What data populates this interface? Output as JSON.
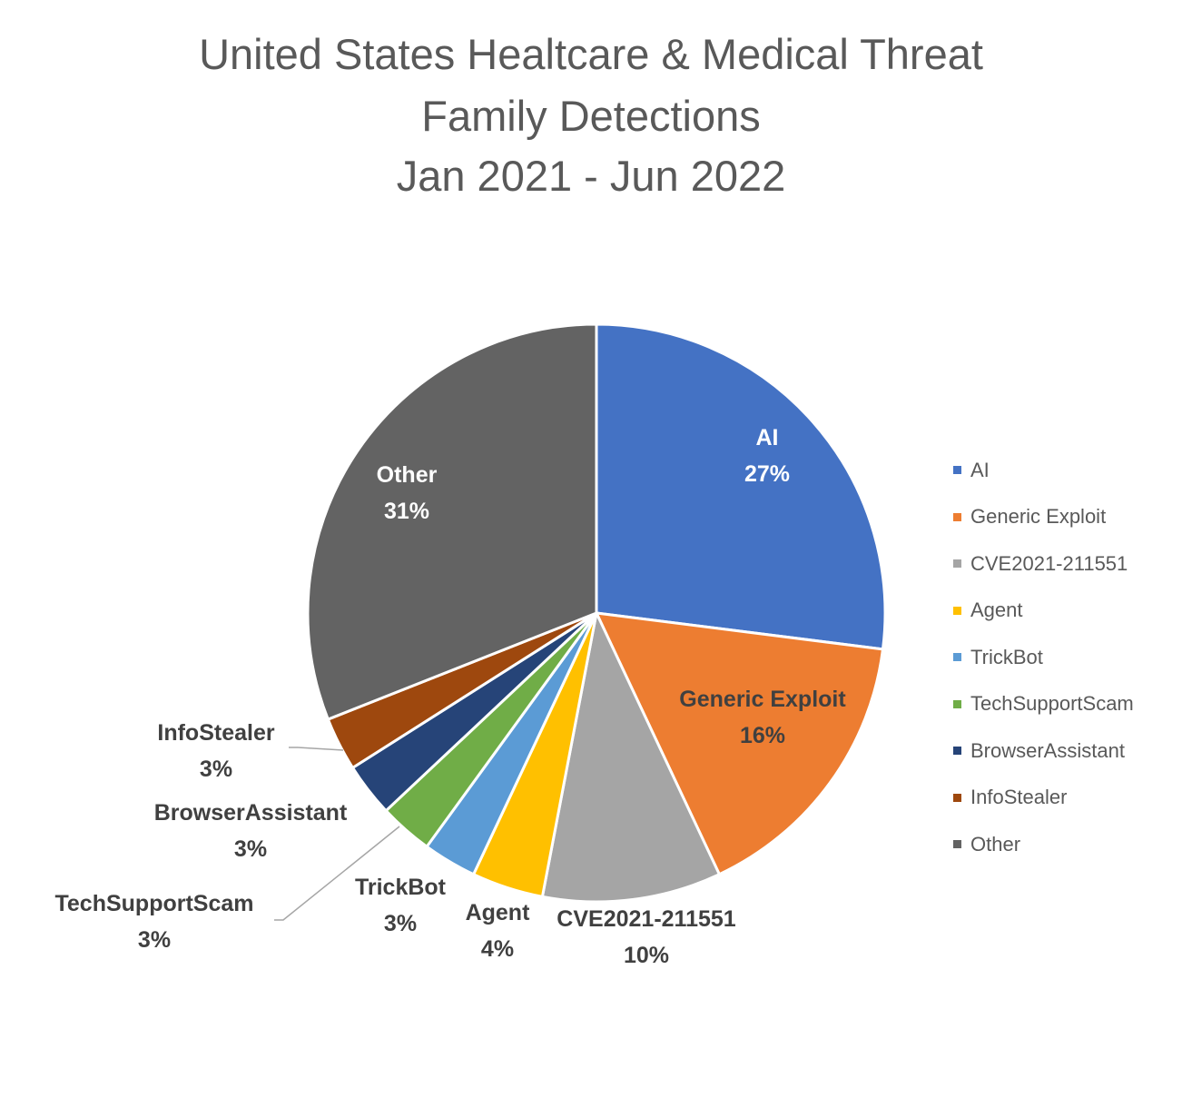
{
  "chart_data": {
    "type": "pie",
    "title_lines": [
      "United States Healtcare & Medical Threat",
      "Family Detections",
      "Jan 2021 - Jun 2022"
    ],
    "categories": [
      "AI",
      "Generic Exploit",
      "CVE2021-211551",
      "Agent",
      "TrickBot",
      "TechSupportScam",
      "BrowserAssistant",
      "InfoStealer",
      "Other"
    ],
    "values": [
      27,
      16,
      10,
      4,
      3,
      3,
      3,
      3,
      31
    ],
    "value_labels": [
      "27%",
      "16%",
      "10%",
      "4%",
      "3%",
      "3%",
      "3%",
      "3%",
      "31%"
    ],
    "colors": [
      "#4472C4",
      "#ED7D31",
      "#A5A5A5",
      "#FFC000",
      "#5B9BD5",
      "#70AD47",
      "#264478",
      "#9E480E",
      "#636363"
    ],
    "label_colors": [
      "#FFFFFF",
      "#404040",
      "#404040",
      "#404040",
      "#404040",
      "#404040",
      "#404040",
      "#404040",
      "#FFFFFF"
    ],
    "legend_position": "right"
  }
}
